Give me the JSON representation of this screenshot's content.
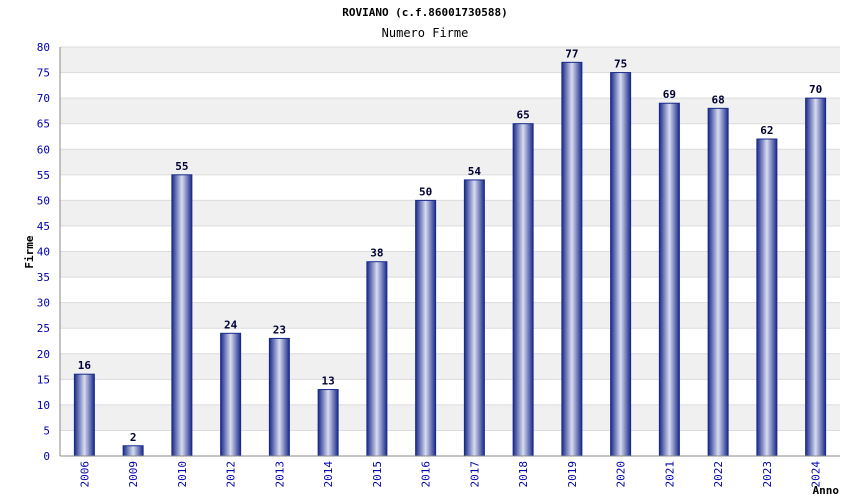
{
  "chart_data": {
    "type": "bar",
    "title": "ROVIANO (c.f.86001730588)",
    "subtitle": "Numero Firme",
    "xlabel": "Anno",
    "ylabel": "Firme",
    "categories": [
      "2006",
      "2009",
      "2010",
      "2012",
      "2013",
      "2014",
      "2015",
      "2016",
      "2017",
      "2018",
      "2019",
      "2020",
      "2021",
      "2022",
      "2023",
      "2024"
    ],
    "values": [
      16,
      2,
      55,
      24,
      23,
      13,
      38,
      50,
      54,
      65,
      77,
      75,
      69,
      68,
      62,
      70
    ],
    "ylim": [
      0,
      80
    ],
    "ytick_step": 5,
    "grid": true,
    "colors": {
      "bar_edge": "#1a2a8a",
      "bar_center": "#d8dcf0",
      "band": "#f0f0f0",
      "grid": "#dcdcdc",
      "tick_text": "#0000aa"
    }
  }
}
